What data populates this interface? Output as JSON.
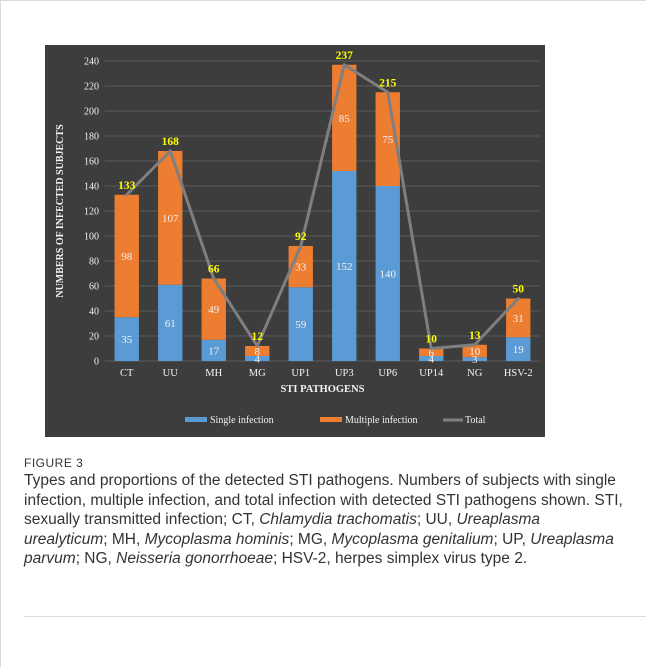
{
  "figure": {
    "label": "FIGURE 3",
    "caption_parts": [
      {
        "text": "Types and proportions of the detected STI pathogens. Numbers of subjects with single infection, multiple infection, and total infection with detected STI pathogens shown. STI, sexually transmitted infection; CT, ",
        "italic": false
      },
      {
        "text": "Chlamydia trachomatis",
        "italic": true
      },
      {
        "text": "; UU, ",
        "italic": false
      },
      {
        "text": "Ureaplasma urealyticum",
        "italic": true
      },
      {
        "text": "; MH, ",
        "italic": false
      },
      {
        "text": "Mycoplasma hominis",
        "italic": true
      },
      {
        "text": "; MG, ",
        "italic": false
      },
      {
        "text": "Mycoplasma genitalium",
        "italic": true
      },
      {
        "text": "; UP, ",
        "italic": false
      },
      {
        "text": "Ureaplasma parvum",
        "italic": true
      },
      {
        "text": "; NG, ",
        "italic": false
      },
      {
        "text": "Neisseria gonorrhoeae",
        "italic": true
      },
      {
        "text": "; HSV-2, herpes simplex virus type 2.",
        "italic": false
      }
    ]
  },
  "chart_data": {
    "type": "bar",
    "stacked": true,
    "categories": [
      "CT",
      "UU",
      "MH",
      "MG",
      "UP1",
      "UP3",
      "UP6",
      "UP14",
      "NG",
      "HSV-2"
    ],
    "series": [
      {
        "name": "Single infection",
        "values": [
          35,
          61,
          17,
          4,
          59,
          152,
          140,
          4,
          3,
          19
        ],
        "color": "#5b9bd5"
      },
      {
        "name": "Multiple infection",
        "values": [
          98,
          107,
          49,
          8,
          33,
          85,
          75,
          6,
          10,
          31
        ],
        "color": "#ed7d31"
      }
    ],
    "line": {
      "name": "Total",
      "values": [
        133,
        168,
        66,
        12,
        92,
        237,
        215,
        10,
        13,
        50
      ],
      "color": "#7f7f7f"
    },
    "xlabel": "STI PATHOGENS",
    "ylabel": "NUMBERS OF INFECTED SUBJECTS",
    "ylim": [
      0,
      240
    ],
    "yticks": [
      0,
      20,
      40,
      60,
      80,
      100,
      120,
      140,
      160,
      180,
      200,
      220,
      240
    ],
    "grid": true,
    "legend_position": "bottom",
    "colors": {
      "background": "#3d3d3d",
      "grid": "#5a5a5a",
      "axis_text": "#f2f2f2",
      "total_label": "#ffff00",
      "bar_label": "#f2f2f2"
    }
  }
}
